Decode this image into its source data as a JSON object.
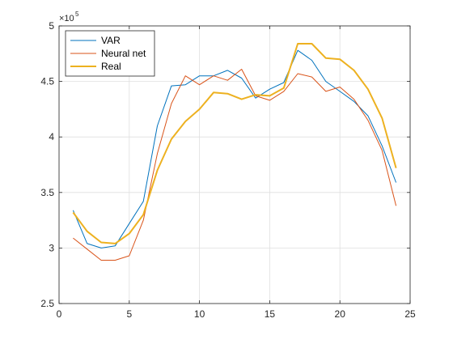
{
  "chart_data": {
    "type": "line",
    "exponent_label": "×10",
    "exponent_power": "5",
    "xlim": [
      0,
      25
    ],
    "ylim": [
      250000,
      500000
    ],
    "xticks": [
      0,
      5,
      10,
      15,
      20,
      25
    ],
    "yticks": [
      250000,
      300000,
      350000,
      400000,
      450000,
      500000
    ],
    "xtick_labels": [
      "0",
      "5",
      "10",
      "15",
      "20",
      "25"
    ],
    "ytick_labels": [
      "2.5",
      "3",
      "3.5",
      "4",
      "4.5",
      "5"
    ],
    "grid": true,
    "legend_position": "top-left",
    "x": [
      1,
      2,
      3,
      4,
      5,
      6,
      7,
      8,
      9,
      10,
      11,
      12,
      13,
      14,
      15,
      16,
      17,
      18,
      19,
      20,
      21,
      22,
      23,
      24
    ],
    "series": [
      {
        "name": "VAR",
        "color": "#0072BD",
        "values": [
          334000,
          304000,
          300000,
          302000,
          322000,
          342000,
          410000,
          446000,
          447000,
          455000,
          455000,
          460000,
          453000,
          435000,
          443000,
          449000,
          478000,
          469000,
          450000,
          441000,
          432000,
          419000,
          392000,
          359000
        ]
      },
      {
        "name": "Neural net",
        "color": "#D95319",
        "values": [
          309000,
          299000,
          289000,
          289000,
          293000,
          325000,
          385000,
          430000,
          455000,
          447000,
          455000,
          451000,
          461000,
          437000,
          433000,
          441000,
          457000,
          454000,
          441000,
          445000,
          434000,
          415000,
          388000,
          338000
        ]
      },
      {
        "name": "Real",
        "color": "#EDB120",
        "values": [
          332000,
          315000,
          305000,
          304000,
          313000,
          330000,
          370000,
          398000,
          414000,
          425000,
          440000,
          439000,
          434000,
          438000,
          437000,
          444000,
          484000,
          484000,
          471000,
          470000,
          460000,
          443000,
          417000,
          372000
        ]
      }
    ]
  }
}
